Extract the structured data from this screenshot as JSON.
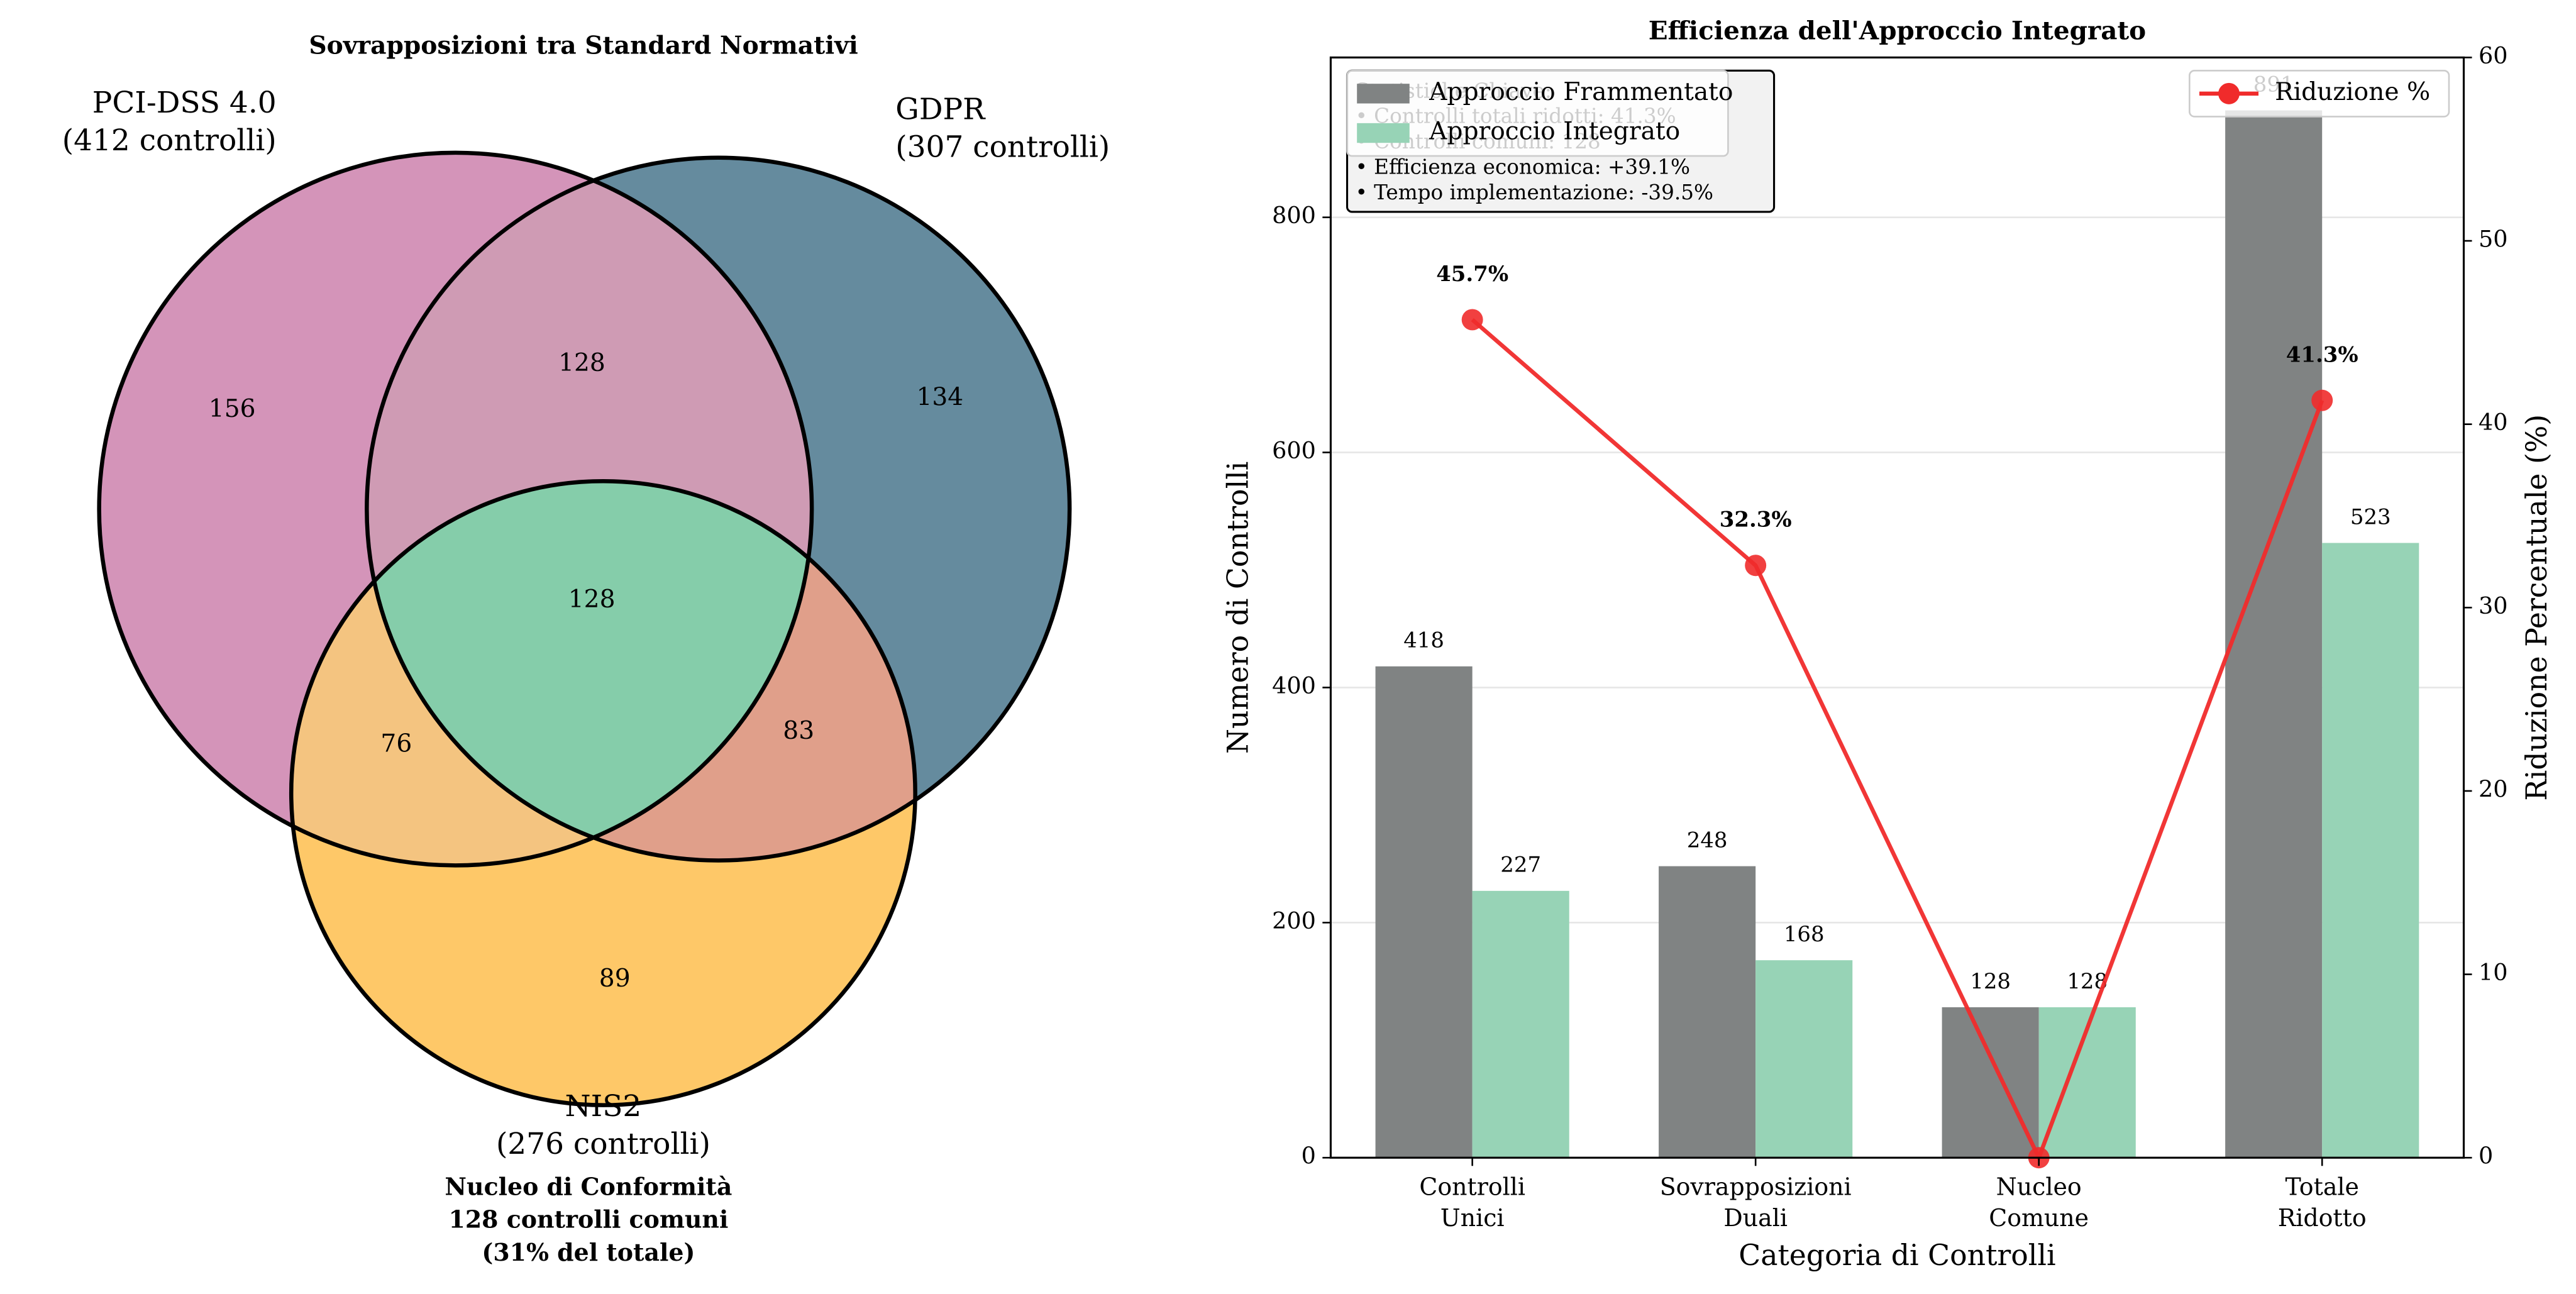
{
  "chart_data": [
    {
      "type": "venn",
      "title": "Sovrapposizioni tra Standard Normativi",
      "sets": [
        {
          "label": [
            "PCI-DSS 4.0",
            "(412 controlli)"
          ],
          "color": "#d494b9"
        },
        {
          "label": [
            "GDPR",
            "(307 controlli)"
          ],
          "color": "#658b9e"
        },
        {
          "label": [
            "NIS2",
            "(276 controlli)"
          ],
          "color": "#fec868"
        }
      ],
      "values": [
        156,
        134,
        89,
        128,
        76,
        83,
        128
      ],
      "region_colors": [
        "#d494b9",
        "#658b9e",
        "#fec868",
        "#cf9bb4",
        "#f4c480",
        "#e09f8a",
        "#85cdaa"
      ],
      "annotation": [
        "Nucleo di Conformità",
        "128 controlli comuni",
        "(31% del totale)"
      ],
      "annotation_color": "#4caf7f"
    },
    {
      "type": "bar",
      "title": "Efficienza dell'Approccio Integrato",
      "categories": [
        [
          "Controlli",
          "Unici"
        ],
        [
          "Sovrapposizioni",
          "Duali"
        ],
        [
          "Nucleo",
          "Comune"
        ],
        [
          "Totale",
          "Ridotto"
        ]
      ],
      "x_label": "Categoria di Controlli",
      "y_label": "Numero di Controlli",
      "y2_label": "Riduzione Percentuale (%)",
      "series": [
        {
          "name": "Approccio Frammentato",
          "color": "#808383",
          "values": [
            418,
            248,
            128,
            891
          ]
        },
        {
          "name": "Approccio Integrato",
          "color": "#97d3b6",
          "values": [
            227,
            168,
            128,
            523
          ]
        },
        {
          "name": "Riduzione %",
          "type": "line",
          "axis": "y2",
          "color": "#f02b2b",
          "values": [
            45.7,
            32.3,
            0,
            41.3
          ],
          "value_labels": [
            "45.7%",
            "32.3%",
            null,
            "41.3%"
          ]
        }
      ],
      "ylim": [
        0,
        936
      ],
      "yticks": [
        0,
        200,
        400,
        600,
        800
      ],
      "y2lim": [
        0,
        60
      ],
      "y2ticks": [
        0,
        10,
        20,
        30,
        40,
        50,
        60
      ],
      "grid": true,
      "annotation": [
        "Statistiche Chiave:",
        "• Controlli totali ridotti: 41.3%",
        "• Controlli comuni: 128",
        "• Efficienza economica: +39.1%",
        "• Tempo implementazione: -39.5%"
      ]
    }
  ]
}
